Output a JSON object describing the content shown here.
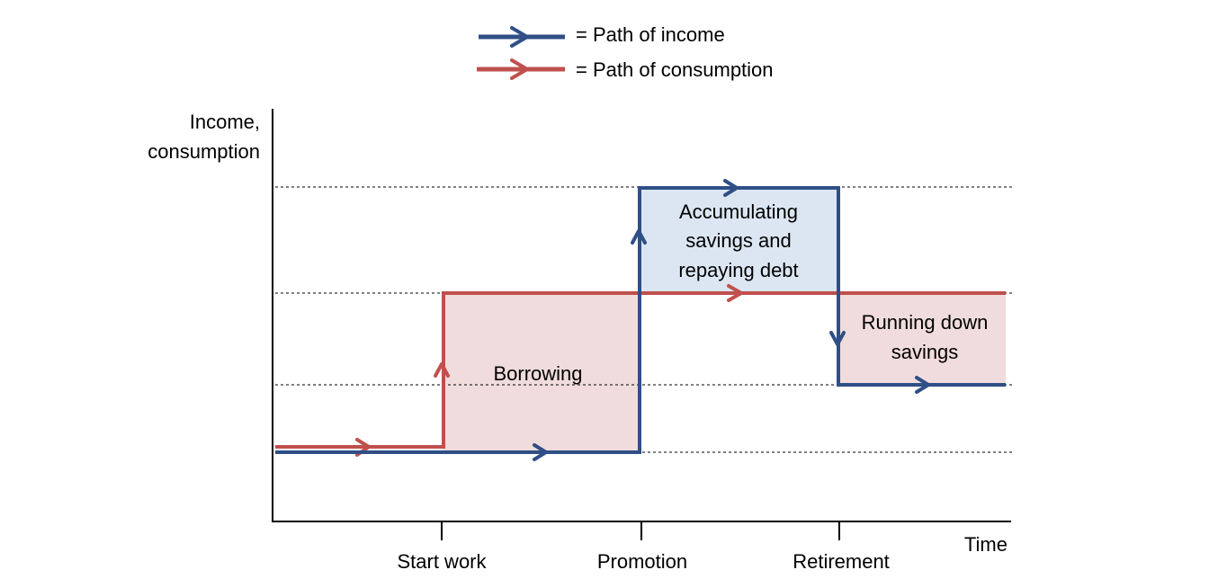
{
  "legend": {
    "income_label": "= Path of income",
    "consumption_label": "= Path of consumption"
  },
  "axes": {
    "y_label_line1": "Income,",
    "y_label_line2": "consumption",
    "x_label": "Time"
  },
  "milestones": {
    "start_work": "Start work",
    "promotion": "Promotion",
    "retirement": "Retirement"
  },
  "regions": {
    "borrowing": "Borrowing",
    "accumulating_line1": "Accumulating",
    "accumulating_line2": "savings and",
    "accumulating_line3": "repaying debt",
    "running_down_line1": "Running down",
    "running_down_line2": "savings"
  },
  "colors": {
    "income": "#2f4f86",
    "consumption": "#c0504d",
    "borrowing_fill": "#f0dcdc",
    "running_down_fill": "#f0dcdc",
    "saving_fill": "#dce6f2",
    "axis": "#000000",
    "guide": "#000000"
  }
}
